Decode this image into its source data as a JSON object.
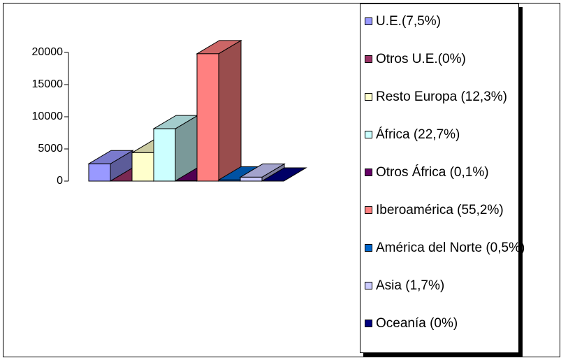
{
  "chart_data": {
    "type": "bar3d",
    "categories": [
      "U.E.(7,5%)",
      "Otros U.E.(0%)",
      "Resto Europa (12,3%)",
      "África (22,7%)",
      "Otros África (0,1%)",
      "Iberoamérica (55,2%)",
      "América del Norte (0,5%)",
      "Asia (1,7%)",
      "Oceanía (0%)"
    ],
    "values": [
      2690,
      0,
      4410,
      8140,
      36,
      19800,
      180,
      610,
      0
    ],
    "colors": [
      "#9999ff",
      "#993366",
      "#ffffcc",
      "#ccffff",
      "#660066",
      "#ff8080",
      "#0066cc",
      "#ccccff",
      "#000080"
    ],
    "ylim": [
      0,
      20000
    ],
    "yticks": [
      0,
      5000,
      10000,
      15000,
      20000
    ],
    "legend": "right"
  }
}
